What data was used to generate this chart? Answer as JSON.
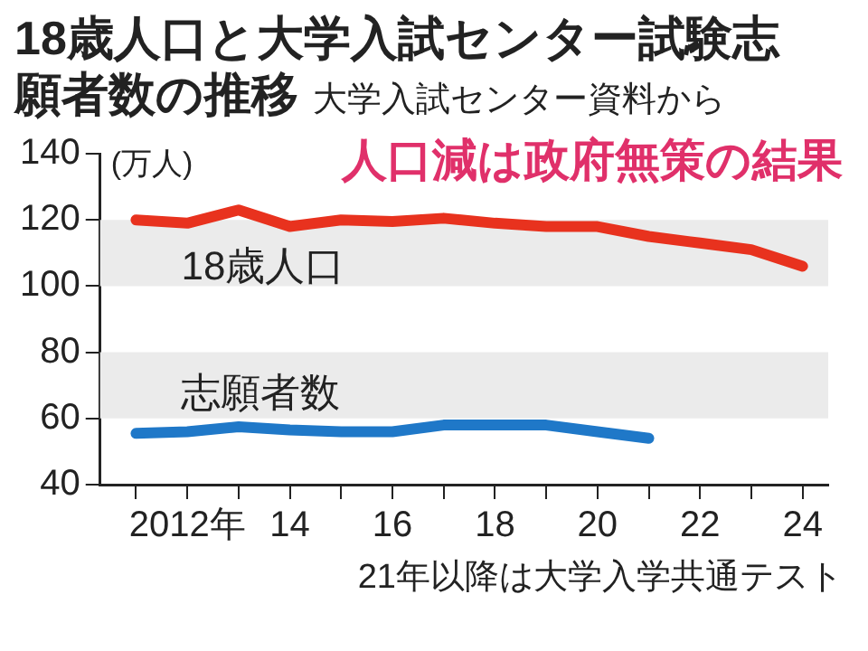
{
  "chart_data": {
    "type": "line",
    "title": "18歳人口と大学入試センター試験志願者数の推移",
    "subtitle": "大学入試センター資料から",
    "ylabel": "(万人)",
    "x": [
      2011,
      2012,
      2013,
      2014,
      2015,
      2016,
      2017,
      2018,
      2019,
      2020,
      2021,
      2022,
      2023,
      2024
    ],
    "series": [
      {
        "name": "18歳人口",
        "color": "#e8321e",
        "values": [
          120,
          119,
          123,
          118,
          120,
          119.5,
          120.5,
          119,
          118,
          118,
          115,
          113,
          111,
          106
        ]
      },
      {
        "name": "志願者数",
        "color": "#1f78c8",
        "values": [
          55.5,
          56,
          57.5,
          56.5,
          56,
          56,
          58,
          58,
          58,
          56,
          54,
          null,
          null,
          null
        ]
      }
    ],
    "xlim": [
      2010.3,
      2024.5
    ],
    "xticks": [
      {
        "value": 2011,
        "label": null
      },
      {
        "value": 2012,
        "label": "2012年"
      },
      {
        "value": 2013,
        "label": null
      },
      {
        "value": 2014,
        "label": "14"
      },
      {
        "value": 2015,
        "label": null
      },
      {
        "value": 2016,
        "label": "16"
      },
      {
        "value": 2017,
        "label": null
      },
      {
        "value": 2018,
        "label": "18"
      },
      {
        "value": 2019,
        "label": null
      },
      {
        "value": 2020,
        "label": "20"
      },
      {
        "value": 2021,
        "label": null
      },
      {
        "value": 2022,
        "label": "22"
      },
      {
        "value": 2023,
        "label": null
      },
      {
        "value": 2024,
        "label": "24"
      }
    ],
    "ylim": [
      40,
      140
    ],
    "yticks": [
      40,
      60,
      80,
      100,
      120,
      140
    ],
    "bands": [
      {
        "axis": "y",
        "from": 60,
        "to": 80,
        "color": "#ebebeb"
      },
      {
        "axis": "y",
        "from": 100,
        "to": 120,
        "color": "#ebebeb"
      }
    ],
    "annotations": [
      "人口減は政府無策の結果",
      "21年以降は大学入学共通テスト"
    ],
    "grid": false,
    "legend": false,
    "marker": "none",
    "line_style": "solid"
  }
}
